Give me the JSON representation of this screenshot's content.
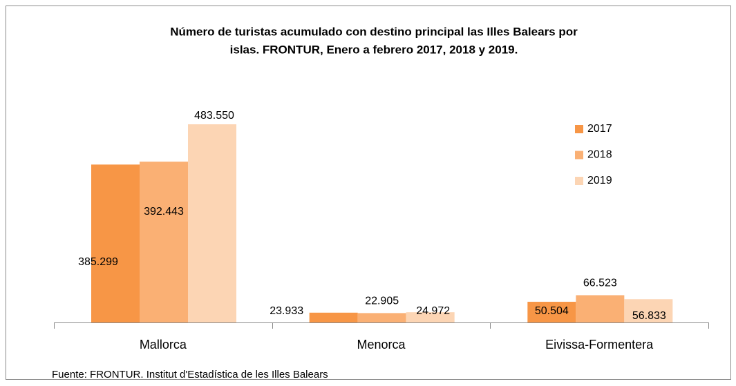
{
  "chart_data": {
    "type": "bar",
    "title": [
      "Número de turistas acumulado con destino principal las Illes Balears por",
      "islas. FRONTUR,  Enero a febrero 2017, 2018 y 2019."
    ],
    "categories": [
      "Mallorca",
      "Menorca",
      "Eivissa-Formentera"
    ],
    "series": [
      {
        "name": "2017",
        "color": "#f79646",
        "values": [
          385299,
          23933,
          50504
        ],
        "value_labels": [
          "385.299",
          "23.933",
          "50.504"
        ]
      },
      {
        "name": "2018",
        "color": "#fab074",
        "values": [
          392443,
          22905,
          66523
        ],
        "value_labels": [
          "392.443",
          "22.905",
          "66.523"
        ]
      },
      {
        "name": "2019",
        "color": "#fcd5b4",
        "values": [
          483550,
          24972,
          56833
        ],
        "value_labels": [
          "483.550",
          "24.972",
          "56.833"
        ]
      }
    ],
    "legend": "right",
    "source": "Fuente: FRONTUR. Institut d'Estadística de les Illes Balears"
  }
}
